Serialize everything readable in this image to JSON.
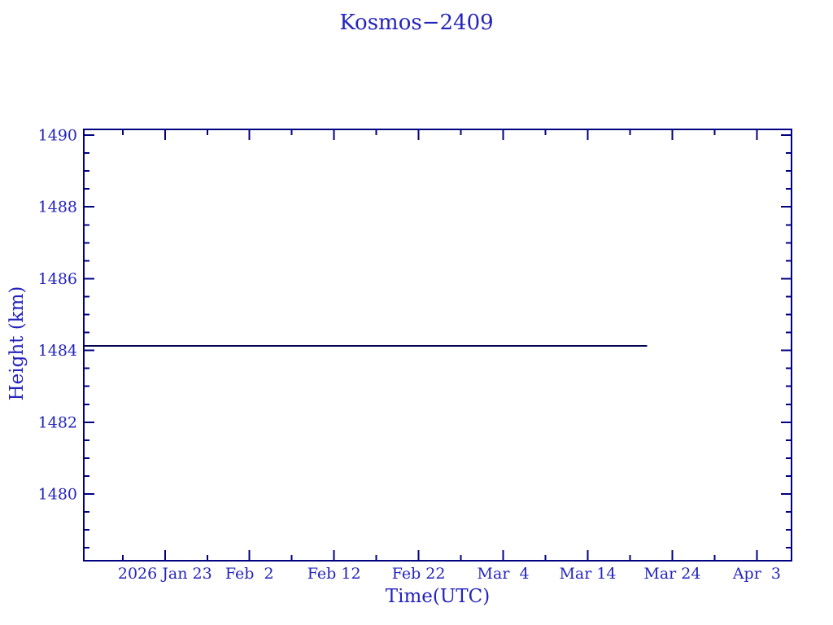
{
  "chart_data": {
    "type": "line",
    "title": "Kosmos−2409",
    "xlabel": "Time(UTC)",
    "ylabel": "Height (km)",
    "legend": "none",
    "grid": false,
    "colors": {
      "text": "#2424bd",
      "axis": "#000080",
      "line": "#00004f",
      "background": "#ffffff"
    },
    "x_axis": {
      "unit": "day of year 2026",
      "range": [
        13.4,
        97.1
      ],
      "major_ticks": [
        {
          "value": 23,
          "label": "2026 Jan 23"
        },
        {
          "value": 33,
          "label": "Feb  2"
        },
        {
          "value": 43,
          "label": "Feb 12"
        },
        {
          "value": 53,
          "label": "Feb 22"
        },
        {
          "value": 63,
          "label": "Mar  4"
        },
        {
          "value": 73,
          "label": "Mar 14"
        },
        {
          "value": 83,
          "label": "Mar 24"
        },
        {
          "value": 93,
          "label": "Apr  3"
        }
      ],
      "minor_ticks": [
        18,
        28,
        38,
        48,
        58,
        68,
        78,
        88
      ]
    },
    "y_axis": {
      "unit": "km",
      "range": [
        1478.14,
        1490.16
      ],
      "major_ticks": [
        {
          "value": 1480,
          "label": "1480"
        },
        {
          "value": 1482,
          "label": "1482"
        },
        {
          "value": 1484,
          "label": "1484"
        },
        {
          "value": 1486,
          "label": "1486"
        },
        {
          "value": 1488,
          "label": "1488"
        },
        {
          "value": 1490,
          "label": "1490"
        }
      ],
      "minor_ticks": [
        1478.5,
        1479.0,
        1479.5,
        1480.5,
        1481.0,
        1481.5,
        1482.5,
        1483.0,
        1483.5,
        1484.5,
        1485.0,
        1485.5,
        1486.5,
        1487.0,
        1487.5,
        1488.5,
        1489.0,
        1489.5
      ]
    },
    "series": [
      {
        "name": "height",
        "points": [
          {
            "x": 13.4,
            "y": 1484.13
          },
          {
            "x": 80.0,
            "y": 1484.13
          }
        ]
      }
    ]
  }
}
